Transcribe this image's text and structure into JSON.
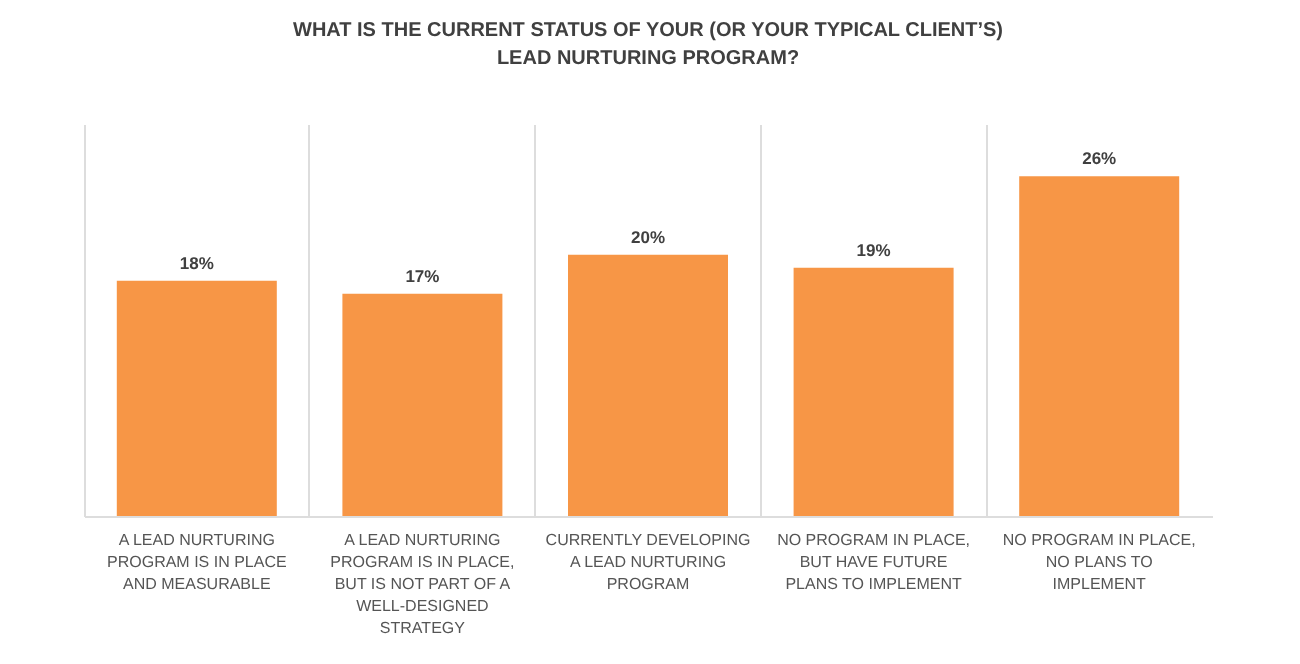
{
  "chart_data": {
    "type": "bar",
    "title": "WHAT IS THE CURRENT STATUS OF YOUR (OR YOUR TYPICAL CLIENT’S) LEAD NURTURING PROGRAM?",
    "categories": [
      "A LEAD NURTURING PROGRAM IS IN PLACE AND MEASURABLE",
      "A LEAD NURTURING PROGRAM IS IN PLACE, BUT IS NOT PART OF A WELL-DESIGNED STRATEGY",
      "CURRENTLY DEVELOPING A LEAD NURTURING PROGRAM",
      "NO PROGRAM IN PLACE, BUT HAVE FUTURE PLANS TO IMPLEMENT",
      "NO PROGRAM IN PLACE, NO PLANS TO IMPLEMENT"
    ],
    "values": [
      18,
      17,
      20,
      19,
      26
    ],
    "value_labels": [
      "18%",
      "17%",
      "20%",
      "19%",
      "26%"
    ],
    "color": "#f79646",
    "ylim": [
      0,
      30
    ],
    "tick_labels": "x",
    "grid": "x"
  }
}
